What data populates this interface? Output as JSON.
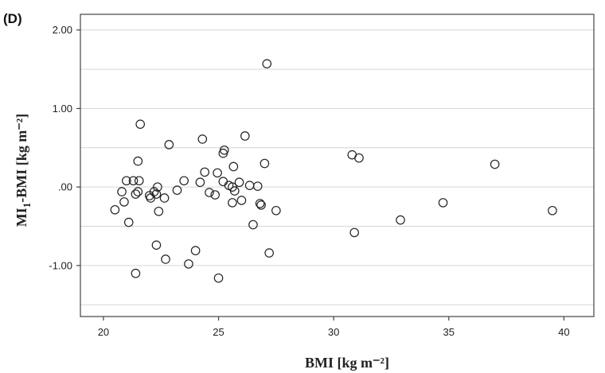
{
  "panel_label": "(D)",
  "chart_data": {
    "type": "scatter",
    "title": "",
    "xlabel": "BMI [kg m⁻²]",
    "ylabel_main": "MI",
    "ylabel_subscript": "1",
    "ylabel_rest": "-BMI [kg m⁻²]",
    "xlim": [
      19,
      41.3
    ],
    "ylim": [
      -1.65,
      2.2
    ],
    "xticks": [
      20,
      25,
      30,
      35,
      40
    ],
    "xtick_labels": [
      "20",
      "25",
      "30",
      "35",
      "40"
    ],
    "yticks": [
      2.0,
      1.0,
      0.0,
      -1.0
    ],
    "ytick_labels": [
      "2.00",
      "1.00",
      ".00",
      "-1.00"
    ],
    "grid_y": [
      2.0,
      1.5,
      1.0,
      0.5,
      0.0,
      -0.5,
      -1.0,
      -1.5
    ],
    "points": [
      {
        "x": 20.5,
        "y": -0.29
      },
      {
        "x": 20.8,
        "y": -0.06
      },
      {
        "x": 20.9,
        "y": -0.19
      },
      {
        "x": 21.0,
        "y": 0.08
      },
      {
        "x": 21.1,
        "y": -0.45
      },
      {
        "x": 21.3,
        "y": 0.08
      },
      {
        "x": 21.4,
        "y": -0.09
      },
      {
        "x": 21.5,
        "y": 0.33
      },
      {
        "x": 21.5,
        "y": -0.06
      },
      {
        "x": 21.55,
        "y": 0.08
      },
      {
        "x": 21.6,
        "y": 0.8
      },
      {
        "x": 21.4,
        "y": -1.1
      },
      {
        "x": 22.0,
        "y": -0.11
      },
      {
        "x": 22.05,
        "y": -0.14
      },
      {
        "x": 22.2,
        "y": -0.06
      },
      {
        "x": 22.3,
        "y": -0.09
      },
      {
        "x": 22.35,
        "y": 0.0
      },
      {
        "x": 22.3,
        "y": -0.74
      },
      {
        "x": 22.4,
        "y": -0.31
      },
      {
        "x": 22.65,
        "y": -0.14
      },
      {
        "x": 22.7,
        "y": -0.92
      },
      {
        "x": 22.85,
        "y": 0.54
      },
      {
        "x": 23.2,
        "y": -0.04
      },
      {
        "x": 23.5,
        "y": 0.08
      },
      {
        "x": 23.7,
        "y": -0.98
      },
      {
        "x": 24.0,
        "y": -0.81
      },
      {
        "x": 24.2,
        "y": 0.06
      },
      {
        "x": 24.3,
        "y": 0.61
      },
      {
        "x": 24.4,
        "y": 0.19
      },
      {
        "x": 24.6,
        "y": -0.07
      },
      {
        "x": 24.85,
        "y": -0.1
      },
      {
        "x": 24.95,
        "y": 0.18
      },
      {
        "x": 25.0,
        "y": -1.16
      },
      {
        "x": 25.2,
        "y": 0.07
      },
      {
        "x": 25.2,
        "y": 0.43
      },
      {
        "x": 25.25,
        "y": 0.47
      },
      {
        "x": 25.45,
        "y": 0.02
      },
      {
        "x": 25.6,
        "y": 0.0
      },
      {
        "x": 25.6,
        "y": -0.2
      },
      {
        "x": 25.65,
        "y": 0.26
      },
      {
        "x": 25.7,
        "y": -0.05
      },
      {
        "x": 25.9,
        "y": 0.06
      },
      {
        "x": 26.0,
        "y": -0.17
      },
      {
        "x": 26.15,
        "y": 0.65
      },
      {
        "x": 26.35,
        "y": 0.02
      },
      {
        "x": 26.5,
        "y": -0.48
      },
      {
        "x": 26.7,
        "y": 0.01
      },
      {
        "x": 26.8,
        "y": -0.21
      },
      {
        "x": 26.85,
        "y": -0.23
      },
      {
        "x": 27.0,
        "y": 0.3
      },
      {
        "x": 27.1,
        "y": 1.57
      },
      {
        "x": 27.2,
        "y": -0.84
      },
      {
        "x": 27.5,
        "y": -0.3
      },
      {
        "x": 30.8,
        "y": 0.41
      },
      {
        "x": 30.9,
        "y": -0.58
      },
      {
        "x": 31.1,
        "y": 0.37
      },
      {
        "x": 32.9,
        "y": -0.42
      },
      {
        "x": 34.75,
        "y": -0.2
      },
      {
        "x": 37.0,
        "y": 0.29
      },
      {
        "x": 39.5,
        "y": -0.3
      }
    ]
  }
}
